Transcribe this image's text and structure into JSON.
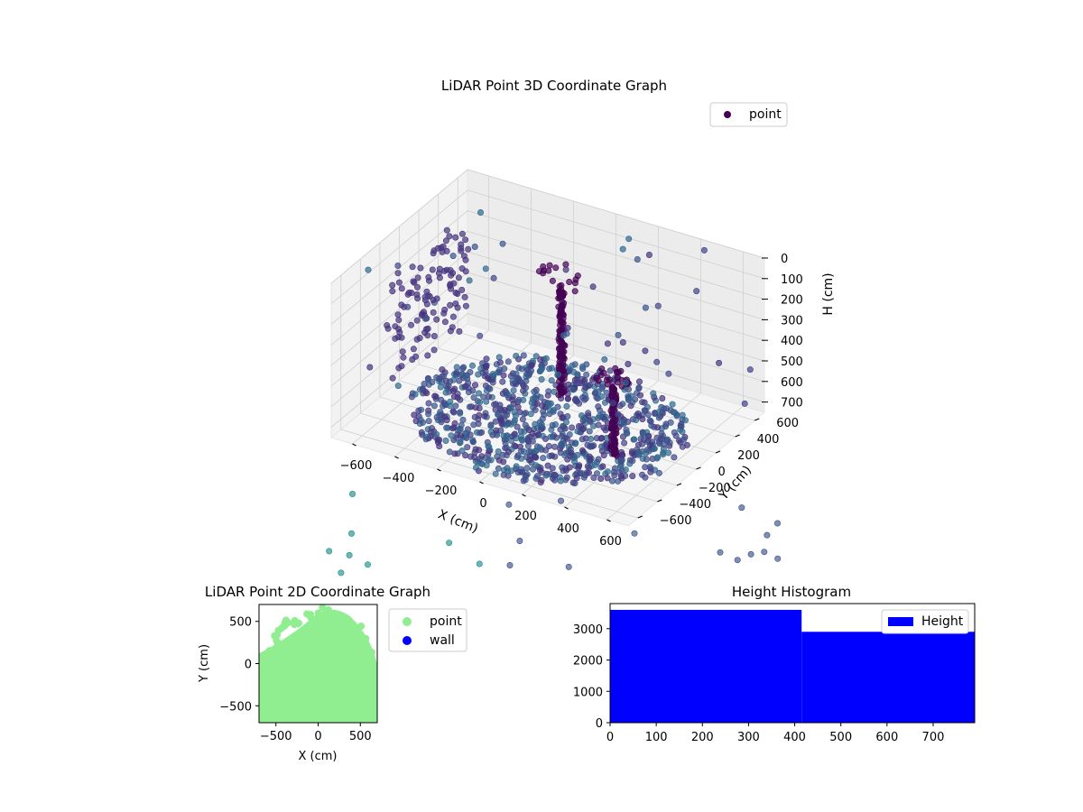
{
  "chart_data": [
    {
      "id": "lidar-3d",
      "type": "scatter",
      "title": "LiDAR Point 3D Coordinate Graph",
      "xlabel": "X (cm)",
      "ylabel": "Y (cm)",
      "zlabel": "H (cm)",
      "xlim": [
        -700,
        700
      ],
      "ylim": [
        -700,
        700
      ],
      "zlim": [
        750,
        0
      ],
      "xticks": [
        "−600",
        "−400",
        "−200",
        "0",
        "200",
        "400",
        "600"
      ],
      "yticks": [
        "−600",
        "−400",
        "−200",
        "0",
        "200",
        "400",
        "600"
      ],
      "zticks": [
        "0",
        "100",
        "200",
        "300",
        "400",
        "500",
        "600",
        "700"
      ],
      "grid": true,
      "legend": {
        "position": "top-right",
        "entries": [
          {
            "label": "point",
            "color": "#440154"
          }
        ]
      },
      "colormap": "viridis",
      "series": [
        {
          "name": "point",
          "description": "dense floor disc near H 700-750 with two vertical pole clusters",
          "clusters": [
            {
              "kind": "floor-disc",
              "center": [
                0,
                0
              ],
              "radius": 600,
              "h": 740
            },
            {
              "kind": "pole",
              "x": -50,
              "y": 250,
              "h_top": 100,
              "h_bottom": 720
            },
            {
              "kind": "pole",
              "x": 380,
              "y": -150,
              "h_top": 300,
              "h_bottom": 720
            },
            {
              "kind": "wall-arc",
              "x": -650,
              "y": [
                -200,
                600
              ],
              "h": [
                150,
                650
              ]
            }
          ]
        }
      ]
    },
    {
      "id": "lidar-2d",
      "type": "scatter",
      "title": "LiDAR Point 2D Coordinate Graph",
      "xlabel": "X (cm)",
      "ylabel": "Y (cm)",
      "xlim": [
        -700,
        700
      ],
      "ylim": [
        -700,
        700
      ],
      "xticks": [
        "−500",
        "0",
        "500"
      ],
      "yticks": [
        "−500",
        "0",
        "500"
      ],
      "legend": {
        "position": "right",
        "entries": [
          {
            "label": "point",
            "color": "#90ee90"
          },
          {
            "label": "wall",
            "color": "#0000ff"
          }
        ]
      },
      "series": [
        {
          "name": "point",
          "color": "#90ee90",
          "shape": "filled disc covering most of the plot area"
        },
        {
          "name": "wall",
          "color": "#0000ff",
          "points": []
        }
      ]
    },
    {
      "id": "height-hist",
      "type": "bar",
      "title": "Height Histogram",
      "xlim": [
        0,
        790
      ],
      "ylim": [
        0,
        3800
      ],
      "xticks": [
        "0",
        "100",
        "200",
        "300",
        "400",
        "500",
        "600",
        "700"
      ],
      "yticks": [
        "0",
        "1000",
        "2000",
        "3000"
      ],
      "legend": {
        "position": "top-right",
        "entries": [
          {
            "label": "Height",
            "color": "#0000ff"
          }
        ]
      },
      "series": [
        {
          "name": "Height",
          "color": "#0000ff",
          "bins": [
            {
              "from": 0,
              "to": 415,
              "count": 3600
            },
            {
              "from": 415,
              "to": 790,
              "count": 2900
            }
          ]
        }
      ]
    }
  ]
}
